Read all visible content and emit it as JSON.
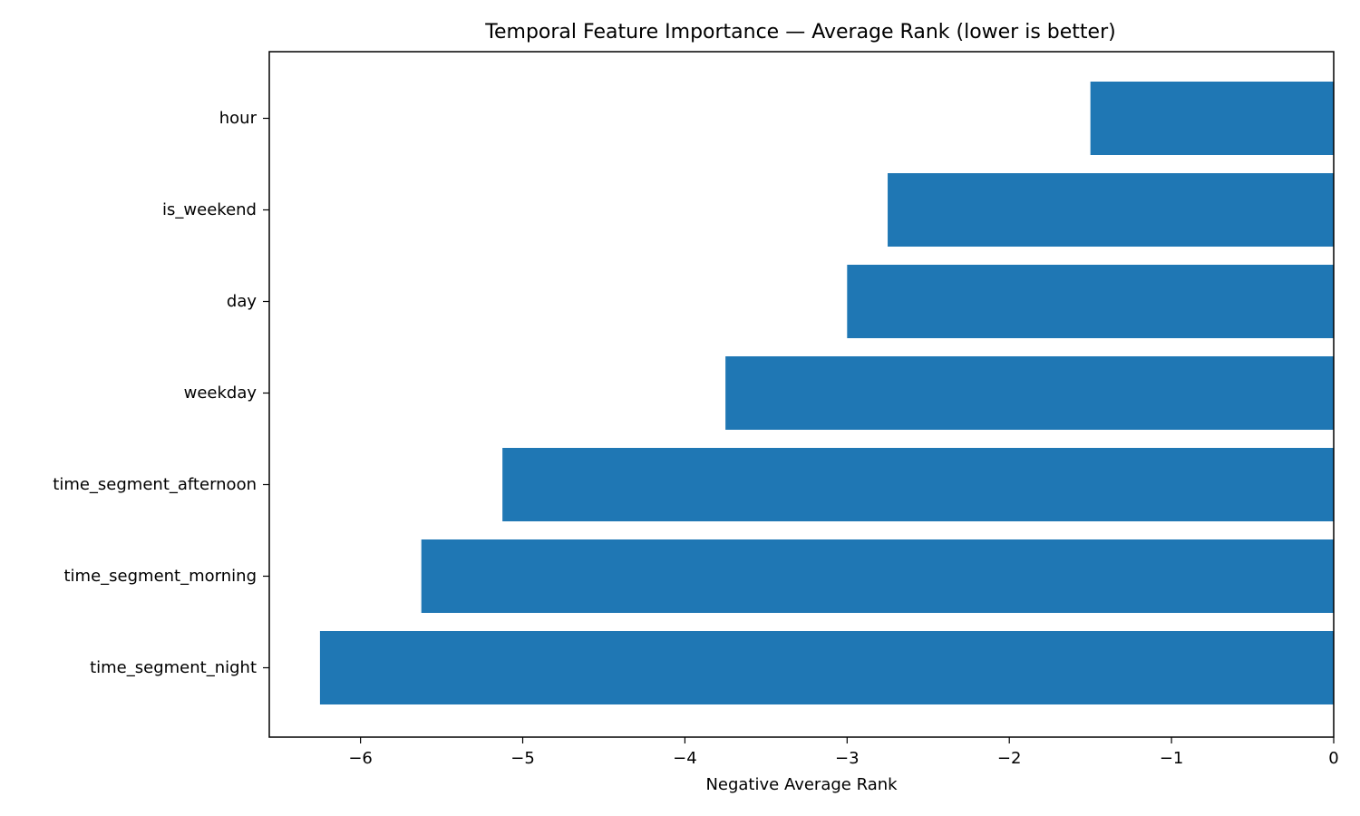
{
  "chart_data": {
    "type": "bar",
    "orientation": "horizontal",
    "title": "Temporal Feature Importance — Average Rank (lower is better)",
    "xlabel": "Negative Average Rank",
    "ylabel": "",
    "categories": [
      "hour",
      "is_weekend",
      "day",
      "weekday",
      "time_segment_afternoon",
      "time_segment_morning",
      "time_segment_night"
    ],
    "values": [
      -1.5,
      -2.75,
      -3.0,
      -3.75,
      -5.125,
      -5.625,
      -6.25
    ],
    "xlim": [
      -6.5625,
      0
    ],
    "xticks": [
      -6,
      -5,
      -4,
      -3,
      -2,
      -1,
      0
    ],
    "xtick_labels": [
      "−6",
      "−5",
      "−4",
      "−3",
      "−2",
      "−1",
      "0"
    ],
    "bar_color": "#1f77b4",
    "grid": false,
    "legend": "none"
  }
}
